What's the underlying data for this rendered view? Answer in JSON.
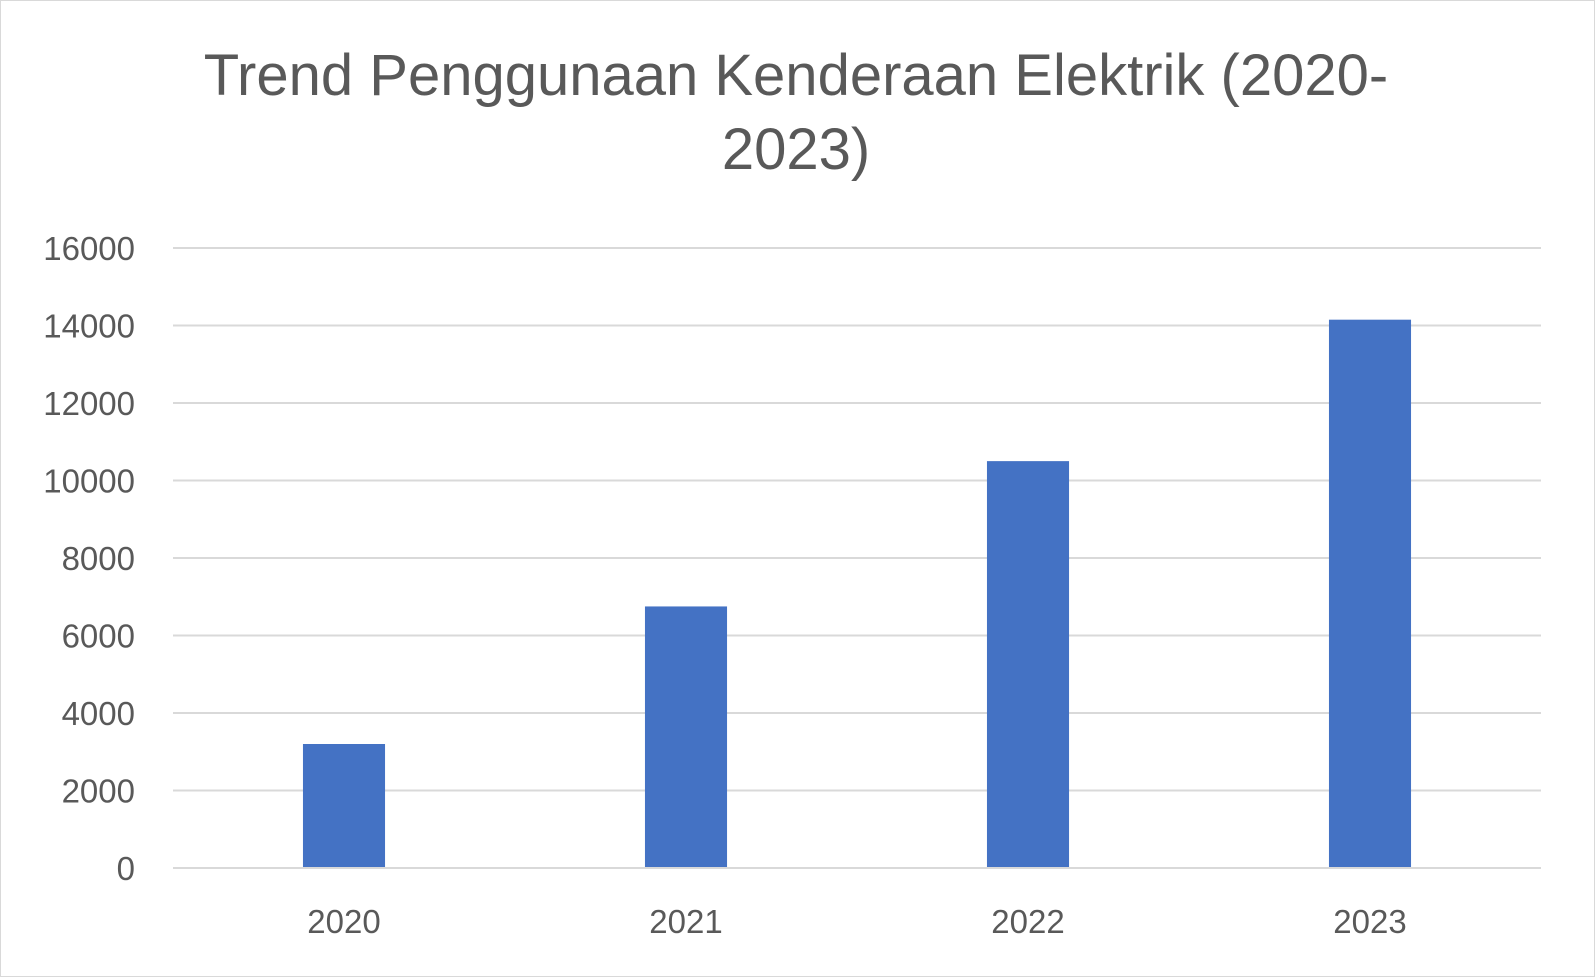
{
  "chart_data": {
    "type": "bar",
    "title": "Trend Penggunaan Kenderaan Elektrik (2020-2023)",
    "xlabel": "",
    "ylabel": "",
    "categories": [
      "2020",
      "2021",
      "2022",
      "2023"
    ],
    "series": [
      {
        "values": [
          3200,
          6750,
          10500,
          14150
        ],
        "color": "#4472c4"
      }
    ],
    "ylim": [
      0,
      16000
    ],
    "yticks": [
      0,
      2000,
      4000,
      6000,
      8000,
      10000,
      12000,
      14000,
      16000
    ],
    "grid": true,
    "legend": "none"
  }
}
